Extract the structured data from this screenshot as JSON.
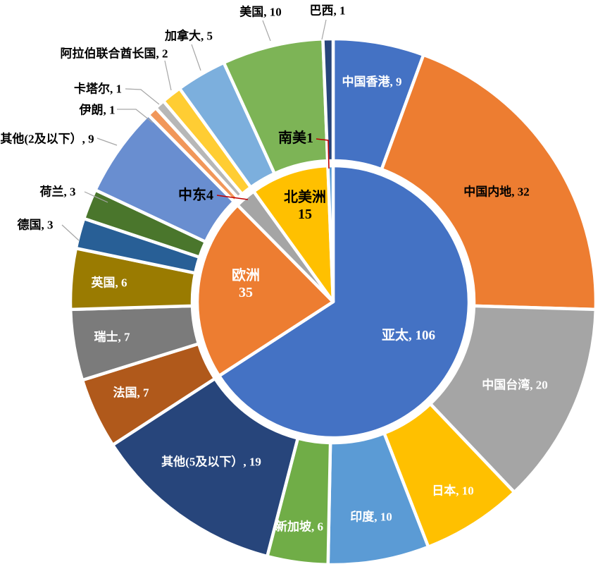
{
  "chart": {
    "background": "#FFFFFF",
    "slice_border_color": "#FFFFFF",
    "leader_line_color": "#A6A6A6",
    "callout_line_color": "#C00000"
  },
  "chart_data": {
    "type": "pie",
    "subtype": "nested-donut",
    "title": "",
    "legend": "none",
    "total": 161,
    "inner_ring": {
      "name": "regions",
      "points": [
        {
          "label": "亚太",
          "value": 106,
          "color": "#4472C4",
          "display": "亚太, 106",
          "label_color": "#FFFFFF",
          "label_placement": "inside"
        },
        {
          "label": "欧洲",
          "value": 35,
          "color": "#ED7D31",
          "display": "欧洲\n35",
          "label_color": "#FFFFFF",
          "label_placement": "inside"
        },
        {
          "label": "中东",
          "value": 4,
          "color": "#A5A5A5",
          "display": "中东4",
          "label_color": "#000000",
          "label_placement": "outside-callout"
        },
        {
          "label": "北美洲",
          "value": 15,
          "color": "#FFC000",
          "display": "北美洲\n15",
          "label_color": "#000000",
          "label_placement": "inside"
        },
        {
          "label": "南美",
          "value": 1,
          "color": "#5B9BD5",
          "display": "南美1",
          "label_color": "#000000",
          "label_placement": "outside-callout"
        }
      ]
    },
    "outer_ring": {
      "name": "countries",
      "points": [
        {
          "label": "中国香港",
          "value": 9,
          "color": "#4472C4",
          "display": "中国香港, 9",
          "label_color": "#FFFFFF",
          "label_placement": "inside"
        },
        {
          "label": "中国内地",
          "value": 32,
          "color": "#ED7D31",
          "display": "中国内地, 32",
          "label_color": "#000000",
          "label_placement": "inside"
        },
        {
          "label": "中国台湾",
          "value": 20,
          "color": "#A5A5A5",
          "display": "中国台湾, 20",
          "label_color": "#FFFFFF",
          "label_placement": "inside"
        },
        {
          "label": "日本",
          "value": 10,
          "color": "#FFC000",
          "display": "日本, 10",
          "label_color": "#FFFFFF",
          "label_placement": "inside"
        },
        {
          "label": "印度",
          "value": 10,
          "color": "#5B9BD5",
          "display": "印度, 10",
          "label_color": "#FFFFFF",
          "label_placement": "inside"
        },
        {
          "label": "新加坡",
          "value": 6,
          "color": "#70AD47",
          "display": "新加坡, 6",
          "label_color": "#FFFFFF",
          "label_placement": "inside"
        },
        {
          "label": "其他(5及以下）",
          "value": 19,
          "color": "#27457B",
          "display": "其他(5及以下）, 19",
          "label_color": "#FFFFFF",
          "label_placement": "inside"
        },
        {
          "label": "法国",
          "value": 7,
          "color": "#B0591B",
          "display": "法国, 7",
          "label_color": "#FFFFFF",
          "label_placement": "inside"
        },
        {
          "label": "瑞士",
          "value": 7,
          "color": "#7B7B7B",
          "display": "瑞士, 7",
          "label_color": "#FFFFFF",
          "label_placement": "inside"
        },
        {
          "label": "英国",
          "value": 6,
          "color": "#9A7B01",
          "display": "英国, 6",
          "label_color": "#FFFFFF",
          "label_placement": "inside"
        },
        {
          "label": "德国",
          "value": 3,
          "color": "#285F96",
          "display": "德国, 3",
          "label_color": "#000000",
          "label_placement": "outside"
        },
        {
          "label": "荷兰",
          "value": 3,
          "color": "#4A762C",
          "display": "荷兰, 3",
          "label_color": "#000000",
          "label_placement": "outside"
        },
        {
          "label": "其他(2及以下）",
          "value": 9,
          "color": "#698ED0",
          "display": "其他(2及以下）, 9",
          "label_color": "#000000",
          "label_placement": "outside"
        },
        {
          "label": "伊朗",
          "value": 1,
          "color": "#F1975A",
          "display": "伊朗, 1",
          "label_color": "#000000",
          "label_placement": "outside"
        },
        {
          "label": "卡塔尔",
          "value": 1,
          "color": "#B7B7B7",
          "display": "卡塔尔, 1",
          "label_color": "#000000",
          "label_placement": "outside"
        },
        {
          "label": "阿拉伯联合酋长国",
          "value": 2,
          "color": "#FFCD33",
          "display": "阿拉伯联合酋长国, 2",
          "label_color": "#000000",
          "label_placement": "outside"
        },
        {
          "label": "加拿大",
          "value": 5,
          "color": "#7CAFDD",
          "display": "加拿大, 5",
          "label_color": "#000000",
          "label_placement": "outside"
        },
        {
          "label": "美国",
          "value": 10,
          "color": "#7DB456",
          "display": "美国, 10",
          "label_color": "#000000",
          "label_placement": "outside"
        },
        {
          "label": "巴西",
          "value": 1,
          "color": "#27457B",
          "display": "巴西, 1",
          "label_color": "#000000",
          "label_placement": "outside"
        }
      ]
    }
  }
}
